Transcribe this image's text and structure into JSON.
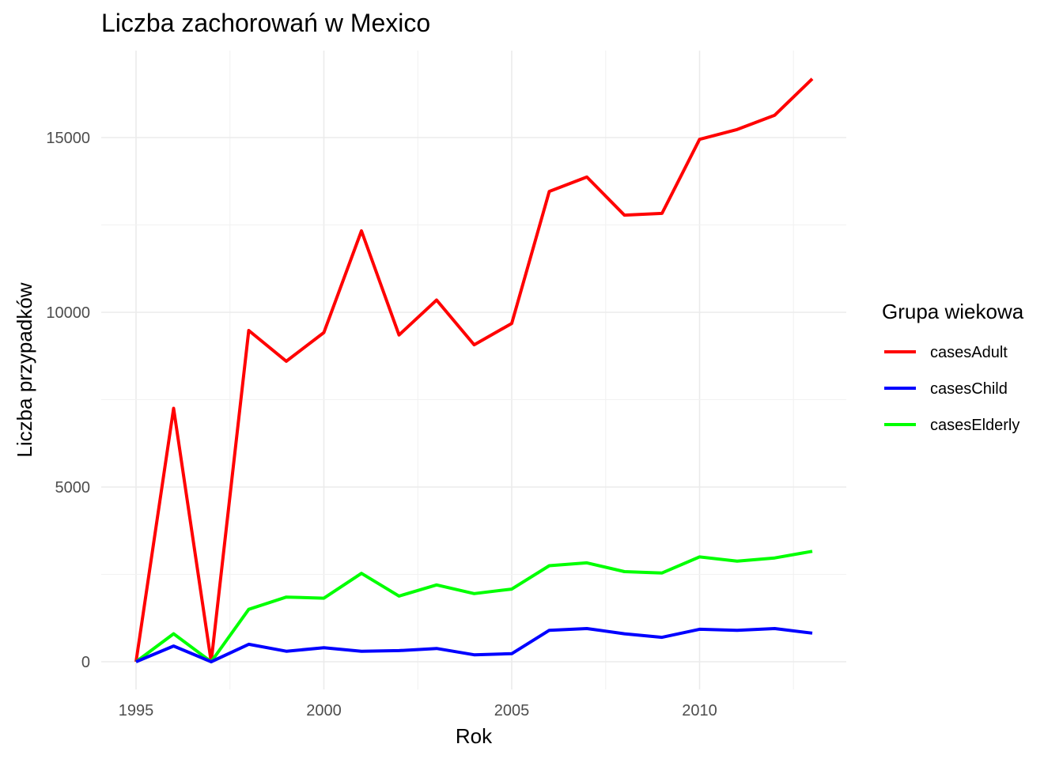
{
  "chart_data": {
    "type": "line",
    "title": "Liczba zachorowań w Mexico",
    "xlabel": "Rok",
    "ylabel": "Liczba przypadków",
    "xlim": [
      1995,
      2013
    ],
    "ylim": [
      0,
      16700
    ],
    "x_ticks": [
      1995,
      2000,
      2005,
      2010
    ],
    "x_tick_labels": [
      "1995",
      "2000",
      "2005",
      "2010"
    ],
    "y_ticks": [
      0,
      5000,
      10000,
      15000
    ],
    "y_tick_labels": [
      "0",
      "5000",
      "10000",
      "15000"
    ],
    "grid": true,
    "legend": {
      "title": "Grupa wiekowa",
      "position": "right"
    },
    "x": [
      1995,
      1996,
      1997,
      1998,
      1999,
      2000,
      2001,
      2002,
      2003,
      2004,
      2005,
      2006,
      2007,
      2008,
      2009,
      2010,
      2011,
      2012,
      2013
    ],
    "series": [
      {
        "name": "casesAdult",
        "color": "#ff0000",
        "values": [
          0,
          7250,
          0,
          9480,
          8600,
          9420,
          12330,
          9350,
          10350,
          9070,
          9680,
          13460,
          13870,
          12780,
          12830,
          14950,
          15230,
          15640,
          16680
        ]
      },
      {
        "name": "casesChild",
        "color": "#0000ff",
        "values": [
          0,
          450,
          0,
          500,
          300,
          400,
          300,
          320,
          380,
          200,
          230,
          900,
          950,
          800,
          700,
          930,
          900,
          950,
          820
        ]
      },
      {
        "name": "casesElderly",
        "color": "#00ff00",
        "values": [
          0,
          800,
          0,
          1500,
          1850,
          1820,
          2530,
          1880,
          2200,
          1950,
          2080,
          2750,
          2830,
          2580,
          2540,
          3000,
          2880,
          2970,
          3160
        ]
      }
    ]
  }
}
